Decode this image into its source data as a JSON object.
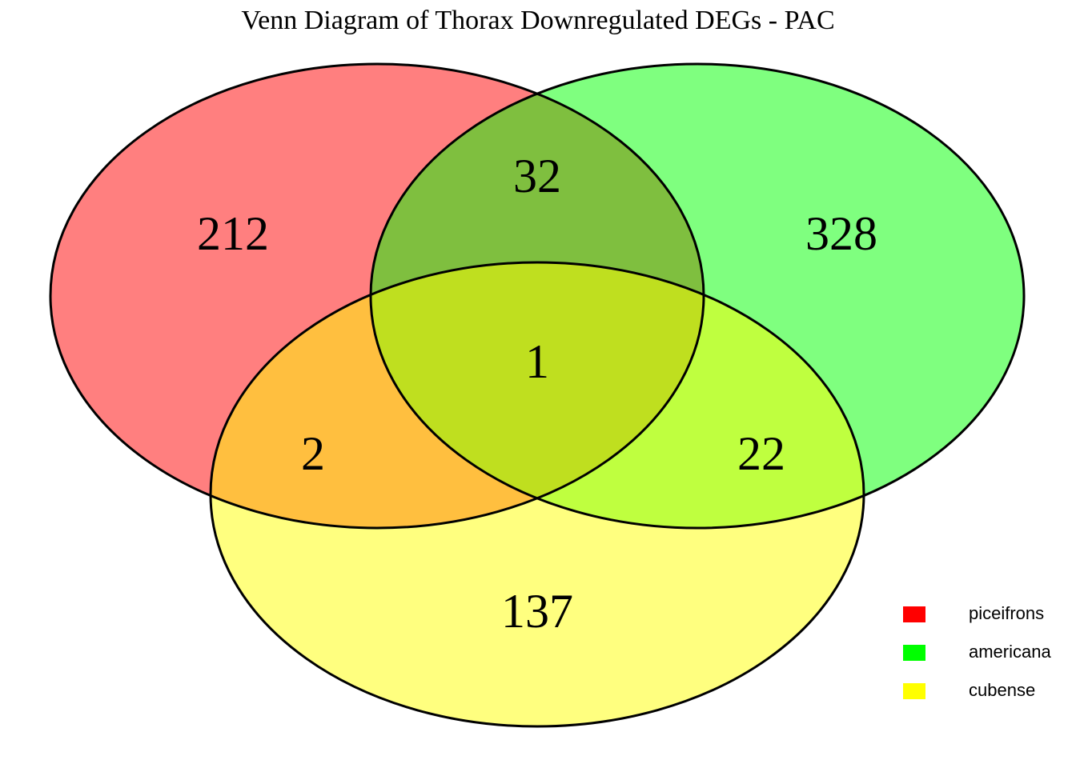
{
  "chart_data": {
    "type": "venn",
    "title": "Venn Diagram of Thorax Downregulated DEGs - PAC",
    "sets": [
      {
        "name": "piceifrons",
        "color": "#ff0000"
      },
      {
        "name": "americana",
        "color": "#00ff00"
      },
      {
        "name": "cubense",
        "color": "#ffff00"
      }
    ],
    "regions": [
      {
        "sets": [
          "piceifrons"
        ],
        "value": 212
      },
      {
        "sets": [
          "americana"
        ],
        "value": 328
      },
      {
        "sets": [
          "cubense"
        ],
        "value": 137
      },
      {
        "sets": [
          "piceifrons",
          "americana"
        ],
        "value": 32
      },
      {
        "sets": [
          "piceifrons",
          "cubense"
        ],
        "value": 2
      },
      {
        "sets": [
          "americana",
          "cubense"
        ],
        "value": 22
      },
      {
        "sets": [
          "piceifrons",
          "americana",
          "cubense"
        ],
        "value": 1
      }
    ],
    "legend": "right"
  }
}
